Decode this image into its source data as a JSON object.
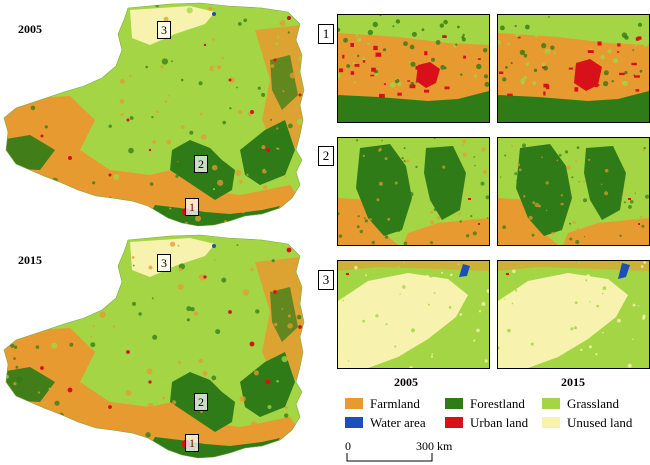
{
  "colors": {
    "farmland": "#e69a30",
    "forestland": "#2f7b17",
    "grassland": "#a4d545",
    "water": "#1c50b8",
    "urban": "#d8101a",
    "unused": "#f7f3ae"
  },
  "maps": [
    {
      "year": "2005",
      "boxes": [
        "3",
        "2",
        "1"
      ]
    },
    {
      "year": "2015",
      "boxes": [
        "3",
        "2",
        "1"
      ]
    }
  ],
  "zoom_panels": [
    {
      "number": "1"
    },
    {
      "number": "2"
    },
    {
      "number": "3"
    }
  ],
  "column_years": [
    "2005",
    "2015"
  ],
  "legend": [
    {
      "label": "Farmland",
      "color_key": "farmland"
    },
    {
      "label": "Forestland",
      "color_key": "forestland"
    },
    {
      "label": "Grassland",
      "color_key": "grassland"
    },
    {
      "label": "Water area",
      "color_key": "water"
    },
    {
      "label": "Urban land",
      "color_key": "urban"
    },
    {
      "label": "Unused land",
      "color_key": "unused"
    }
  ],
  "scale_bar": {
    "start": "0",
    "end": "300 km"
  }
}
